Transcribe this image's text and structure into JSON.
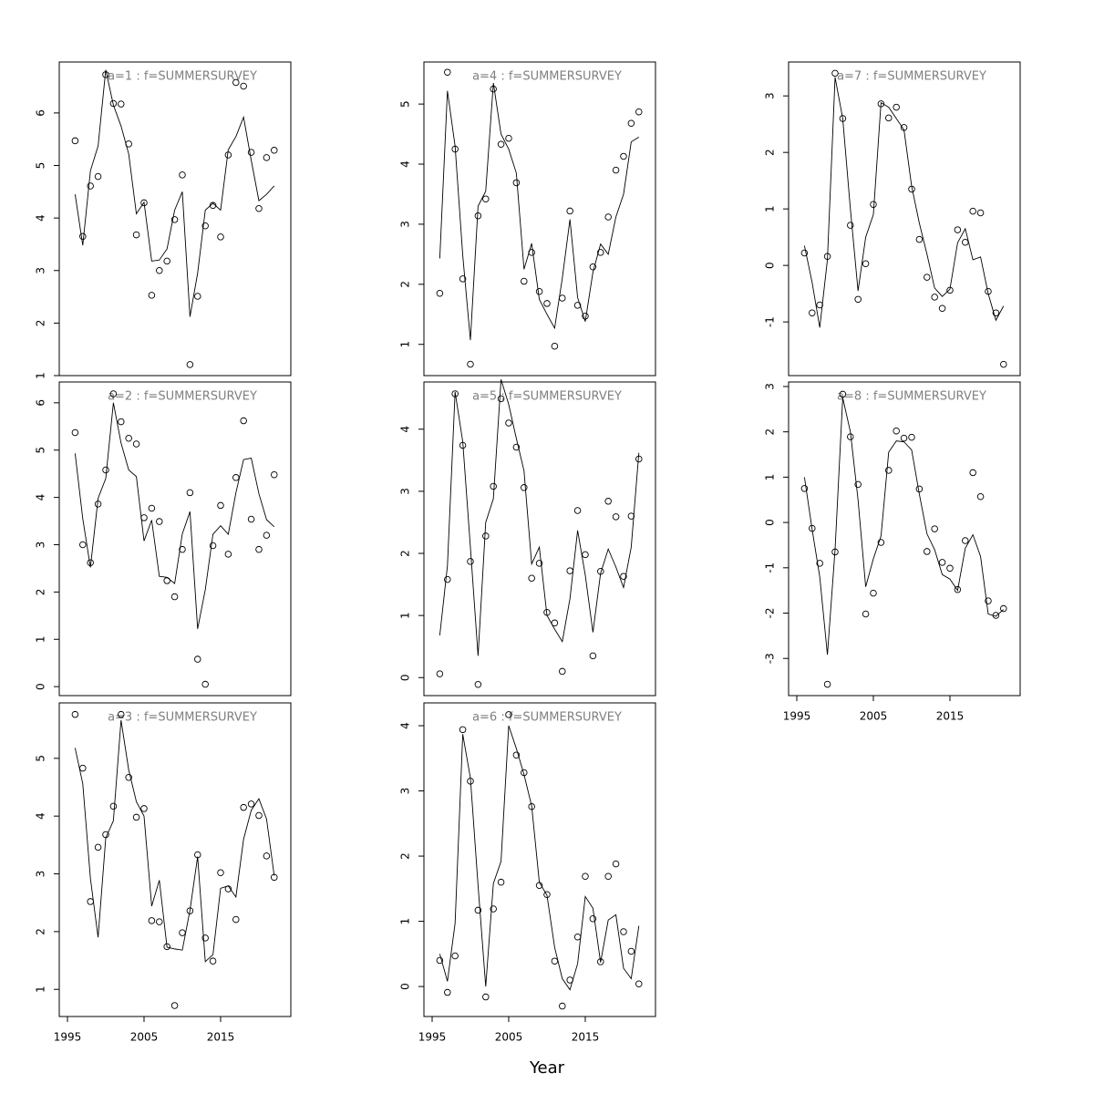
{
  "xlabel": "Year",
  "chart_data": [
    {
      "type": "line",
      "title": "a=1  :  f=SUMMERSURVEY",
      "xlim": [
        1993.93,
        2024.17
      ],
      "ylim": [
        1.0,
        6.97
      ],
      "yticks": [
        1,
        2,
        3,
        4,
        5,
        6
      ],
      "x": [
        1996,
        1997,
        1998,
        1999,
        2000,
        2001,
        2002,
        2003,
        2004,
        2005,
        2006,
        2007,
        2008,
        2009,
        2010,
        2011,
        2012,
        2013,
        2014,
        2015,
        2016,
        2017,
        2018,
        2019,
        2020,
        2021,
        2022
      ],
      "series": [
        {
          "style": "points",
          "color": "#000000",
          "values": [
            5.47,
            3.65,
            4.61,
            4.79,
            6.73,
            6.18,
            6.17,
            5.41,
            3.68,
            4.29,
            2.53,
            3.0,
            3.18,
            3.97,
            4.82,
            1.21,
            2.51,
            3.85,
            4.24,
            3.64,
            5.2,
            6.58,
            6.51,
            5.25,
            4.18,
            5.15,
            5.29
          ]
        },
        {
          "style": "line",
          "color": "#000000",
          "values": [
            4.45,
            3.48,
            4.9,
            5.37,
            6.82,
            6.15,
            5.75,
            5.22,
            4.08,
            4.3,
            3.18,
            3.2,
            3.41,
            4.15,
            4.5,
            2.12,
            2.95,
            4.15,
            4.28,
            4.15,
            5.3,
            5.55,
            5.92,
            5.1,
            4.33,
            4.45,
            4.61
          ]
        }
      ]
    },
    {
      "type": "line",
      "title": "a=2  :  f=SUMMERSURVEY",
      "xlim": [
        1993.93,
        2024.17
      ],
      "ylim": [
        -0.19,
        6.44
      ],
      "yticks": [
        0,
        1,
        2,
        3,
        4,
        5,
        6
      ],
      "x": [
        1996,
        1997,
        1998,
        1999,
        2000,
        2001,
        2002,
        2003,
        2004,
        2005,
        2006,
        2007,
        2008,
        2009,
        2010,
        2011,
        2012,
        2013,
        2014,
        2015,
        2016,
        2017,
        2018,
        2019,
        2020,
        2021,
        2022
      ],
      "series": [
        {
          "style": "points",
          "color": "#000000",
          "values": [
            5.37,
            3.0,
            2.62,
            3.86,
            4.58,
            6.19,
            5.6,
            5.25,
            5.13,
            3.57,
            3.77,
            3.49,
            2.24,
            1.9,
            2.9,
            4.1,
            0.58,
            0.05,
            2.98,
            3.83,
            2.8,
            4.42,
            5.62,
            3.54,
            2.9,
            3.2,
            4.48
          ]
        },
        {
          "style": "line",
          "color": "#000000",
          "values": [
            4.93,
            3.55,
            2.52,
            3.98,
            4.4,
            6.0,
            5.15,
            4.58,
            4.44,
            3.08,
            3.52,
            2.33,
            2.31,
            2.18,
            3.23,
            3.7,
            1.22,
            2.05,
            3.22,
            3.4,
            3.22,
            4.1,
            4.8,
            4.83,
            4.08,
            3.53,
            3.38
          ]
        }
      ]
    },
    {
      "type": "line",
      "title": "a=3  :  f=SUMMERSURVEY",
      "xlim": [
        1993.93,
        2024.17
      ],
      "ylim": [
        0.53,
        5.96
      ],
      "yticks": [
        1,
        2,
        3,
        4,
        5
      ],
      "xticks": [
        1995,
        2005,
        2015
      ],
      "x": [
        1996,
        1997,
        1998,
        1999,
        2000,
        2001,
        2002,
        2003,
        2004,
        2005,
        2006,
        2007,
        2008,
        2009,
        2010,
        2011,
        2012,
        2013,
        2014,
        2015,
        2016,
        2017,
        2018,
        2019,
        2020,
        2021,
        2022
      ],
      "series": [
        {
          "style": "points",
          "color": "#000000",
          "values": [
            5.76,
            4.83,
            2.52,
            3.46,
            3.68,
            4.17,
            5.76,
            4.67,
            3.98,
            4.13,
            2.19,
            2.17,
            1.74,
            0.72,
            1.98,
            2.36,
            3.33,
            1.89,
            1.49,
            3.02,
            2.74,
            2.21,
            4.15,
            4.21,
            4.01,
            3.31,
            2.94
          ]
        },
        {
          "style": "line",
          "color": "#000000",
          "values": [
            5.18,
            4.56,
            2.92,
            1.9,
            3.62,
            3.92,
            5.66,
            4.8,
            4.25,
            4.0,
            2.44,
            2.89,
            1.73,
            1.7,
            1.68,
            2.37,
            3.3,
            1.48,
            1.6,
            2.75,
            2.79,
            2.6,
            3.6,
            4.1,
            4.3,
            3.95,
            2.97
          ]
        }
      ]
    },
    {
      "type": "line",
      "title": "a=4  :  f=SUMMERSURVEY",
      "xlim": [
        1993.93,
        2024.17
      ],
      "ylim": [
        0.48,
        5.7
      ],
      "yticks": [
        1,
        2,
        3,
        4,
        5
      ],
      "x": [
        1996,
        1997,
        1998,
        1999,
        2000,
        2001,
        2002,
        2003,
        2004,
        2005,
        2006,
        2007,
        2008,
        2009,
        2010,
        2011,
        2012,
        2013,
        2014,
        2015,
        2016,
        2017,
        2018,
        2019,
        2020,
        2021,
        2022
      ],
      "series": [
        {
          "style": "points",
          "color": "#000000",
          "values": [
            1.85,
            5.53,
            4.25,
            2.09,
            0.67,
            3.14,
            3.42,
            5.25,
            4.33,
            4.43,
            3.69,
            2.05,
            2.53,
            1.88,
            1.68,
            0.97,
            1.77,
            3.22,
            1.65,
            1.47,
            2.29,
            2.53,
            3.12,
            3.9,
            4.13,
            4.68,
            4.87
          ]
        },
        {
          "style": "line",
          "color": "#000000",
          "values": [
            2.43,
            5.22,
            4.3,
            2.48,
            1.07,
            3.3,
            3.55,
            5.35,
            4.5,
            4.25,
            3.85,
            2.25,
            2.68,
            1.75,
            1.5,
            1.27,
            2.1,
            3.08,
            1.78,
            1.38,
            2.2,
            2.67,
            2.5,
            3.12,
            3.5,
            4.37,
            4.45
          ]
        }
      ]
    },
    {
      "type": "line",
      "title": "a=5  :  f=SUMMERSURVEY",
      "xlim": [
        1993.93,
        2024.17
      ],
      "ylim": [
        -0.29,
        4.76
      ],
      "yticks": [
        0,
        1,
        2,
        3,
        4
      ],
      "x": [
        1996,
        1997,
        1998,
        1999,
        2000,
        2001,
        2002,
        2003,
        2004,
        2005,
        2006,
        2007,
        2008,
        2009,
        2010,
        2011,
        2012,
        2013,
        2014,
        2015,
        2016,
        2017,
        2018,
        2019,
        2020,
        2021,
        2022
      ],
      "series": [
        {
          "style": "points",
          "color": "#000000",
          "values": [
            0.06,
            1.58,
            4.57,
            3.74,
            1.87,
            -0.11,
            2.28,
            3.08,
            4.49,
            4.1,
            3.71,
            3.06,
            1.6,
            1.84,
            1.05,
            0.88,
            0.1,
            1.72,
            2.69,
            1.98,
            0.35,
            1.71,
            2.84,
            2.59,
            1.63,
            2.6,
            3.52
          ]
        },
        {
          "style": "line",
          "color": "#000000",
          "values": [
            0.68,
            1.8,
            4.6,
            3.8,
            2.1,
            0.35,
            2.5,
            2.88,
            4.8,
            4.4,
            3.85,
            3.33,
            1.83,
            2.1,
            1.0,
            0.78,
            0.58,
            1.27,
            2.37,
            1.65,
            0.73,
            1.68,
            2.07,
            1.78,
            1.45,
            2.1,
            3.62
          ]
        }
      ]
    },
    {
      "type": "line",
      "title": "a=6  :  f=SUMMERSURVEY",
      "xlim": [
        1993.93,
        2024.17
      ],
      "ylim": [
        -0.46,
        4.35
      ],
      "yticks": [
        0,
        1,
        2,
        3,
        4
      ],
      "xticks": [
        1995,
        2005,
        2015
      ],
      "x": [
        1996,
        1997,
        1998,
        1999,
        2000,
        2001,
        2002,
        2003,
        2004,
        2005,
        2006,
        2007,
        2008,
        2009,
        2010,
        2011,
        2012,
        2013,
        2014,
        2015,
        2016,
        2017,
        2018,
        2019,
        2020,
        2021,
        2022
      ],
      "series": [
        {
          "style": "points",
          "color": "#000000",
          "values": [
            0.4,
            -0.09,
            0.47,
            3.94,
            3.15,
            1.17,
            -0.16,
            1.19,
            1.6,
            4.17,
            3.55,
            3.28,
            2.76,
            1.55,
            1.41,
            0.39,
            -0.3,
            0.1,
            0.76,
            1.69,
            1.04,
            0.38,
            1.69,
            1.88,
            0.84,
            0.54,
            0.04
          ]
        },
        {
          "style": "line",
          "color": "#000000",
          "values": [
            0.5,
            0.08,
            0.97,
            3.87,
            3.2,
            1.55,
            0.0,
            1.58,
            1.92,
            4.0,
            3.65,
            3.25,
            2.77,
            1.6,
            1.4,
            0.6,
            0.12,
            -0.05,
            0.35,
            1.38,
            1.2,
            0.37,
            1.02,
            1.1,
            0.28,
            0.12,
            0.93
          ]
        }
      ]
    },
    {
      "type": "line",
      "title": "a=7  :  f=SUMMERSURVEY",
      "xlim": [
        1993.93,
        2024.17
      ],
      "ylim": [
        -1.95,
        3.6
      ],
      "yticks": [
        -1,
        0,
        1,
        2,
        3
      ],
      "x": [
        1996,
        1997,
        1998,
        1999,
        2000,
        2001,
        2002,
        2003,
        2004,
        2005,
        2006,
        2007,
        2008,
        2009,
        2010,
        2011,
        2012,
        2013,
        2014,
        2015,
        2016,
        2017,
        2018,
        2019,
        2020,
        2021,
        2022
      ],
      "series": [
        {
          "style": "points",
          "color": "#000000",
          "values": [
            0.22,
            -0.84,
            -0.7,
            0.16,
            3.4,
            2.6,
            0.71,
            -0.6,
            0.03,
            1.08,
            2.86,
            2.61,
            2.8,
            2.44,
            1.35,
            0.46,
            -0.21,
            -0.56,
            -0.76,
            -0.44,
            0.63,
            0.41,
            0.96,
            0.93,
            -0.46,
            -0.84,
            -1.75
          ]
        },
        {
          "style": "line",
          "color": "#000000",
          "values": [
            0.35,
            -0.3,
            -1.1,
            0.1,
            3.33,
            2.6,
            1.0,
            -0.45,
            0.5,
            0.9,
            2.88,
            2.8,
            2.6,
            2.4,
            1.4,
            0.75,
            0.2,
            -0.4,
            -0.55,
            -0.42,
            0.4,
            0.65,
            0.1,
            0.15,
            -0.5,
            -0.97,
            -0.72
          ]
        }
      ]
    },
    {
      "type": "line",
      "title": "a=8  :  f=SUMMERSURVEY",
      "xlim": [
        1993.93,
        2024.17
      ],
      "ylim": [
        -3.82,
        3.1
      ],
      "yticks": [
        -3,
        -2,
        -1,
        0,
        1,
        2,
        3
      ],
      "xticks": [
        1995,
        2005,
        2015
      ],
      "x": [
        1996,
        1997,
        1998,
        1999,
        2000,
        2001,
        2002,
        2003,
        2004,
        2005,
        2006,
        2007,
        2008,
        2009,
        2010,
        2011,
        2012,
        2013,
        2014,
        2015,
        2016,
        2017,
        2018,
        2019,
        2020,
        2021,
        2022
      ],
      "series": [
        {
          "style": "points",
          "color": "#000000",
          "values": [
            0.75,
            -0.13,
            -0.9,
            -3.57,
            -0.65,
            2.83,
            1.89,
            0.84,
            -2.02,
            -1.56,
            -0.44,
            1.15,
            2.02,
            1.86,
            1.88,
            0.74,
            -0.64,
            -0.14,
            -0.88,
            -1.01,
            -1.48,
            -0.4,
            1.1,
            0.57,
            -1.73,
            -2.05,
            -1.9
          ]
        },
        {
          "style": "line",
          "color": "#000000",
          "values": [
            1.0,
            -0.15,
            -1.2,
            -2.92,
            -0.6,
            2.75,
            2.0,
            0.5,
            -1.42,
            -0.8,
            -0.3,
            1.55,
            1.8,
            1.78,
            1.6,
            0.63,
            -0.25,
            -0.6,
            -1.15,
            -1.25,
            -1.5,
            -0.57,
            -0.27,
            -0.75,
            -2.02,
            -2.07,
            -1.92
          ]
        }
      ]
    }
  ]
}
